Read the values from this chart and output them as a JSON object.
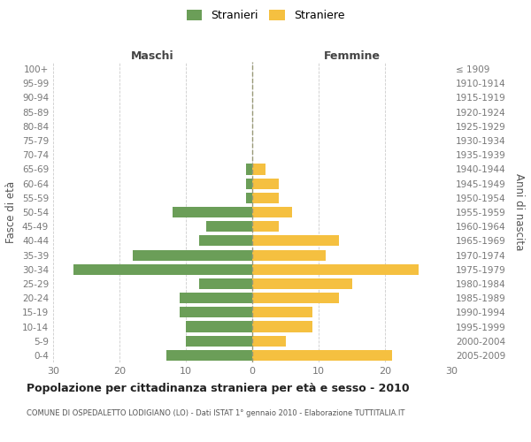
{
  "age_groups_top_to_bottom": [
    "100+",
    "95-99",
    "90-94",
    "85-89",
    "80-84",
    "75-79",
    "70-74",
    "65-69",
    "60-64",
    "55-59",
    "50-54",
    "45-49",
    "40-44",
    "35-39",
    "30-34",
    "25-29",
    "20-24",
    "15-19",
    "10-14",
    "5-9",
    "0-4"
  ],
  "birth_years_top_to_bottom": [
    "≤ 1909",
    "1910-1914",
    "1915-1919",
    "1920-1924",
    "1925-1929",
    "1930-1934",
    "1935-1939",
    "1940-1944",
    "1945-1949",
    "1950-1954",
    "1955-1959",
    "1960-1964",
    "1965-1969",
    "1970-1974",
    "1975-1979",
    "1980-1984",
    "1985-1989",
    "1990-1994",
    "1995-1999",
    "2000-2004",
    "2005-2009"
  ],
  "maschi_top_to_bottom": [
    0,
    0,
    0,
    0,
    0,
    0,
    0,
    1,
    1,
    1,
    12,
    7,
    8,
    18,
    27,
    8,
    11,
    11,
    10,
    10,
    13
  ],
  "femmine_top_to_bottom": [
    0,
    0,
    0,
    0,
    0,
    0,
    0,
    2,
    4,
    4,
    6,
    4,
    13,
    11,
    25,
    15,
    13,
    9,
    9,
    5,
    21
  ],
  "color_maschi": "#6b9e58",
  "color_femmine": "#f5c040",
  "legend_maschi": "Stranieri",
  "legend_femmine": "Straniere",
  "label_maschi": "Maschi",
  "label_femmine": "Femmine",
  "ylabel_left": "Fasce di età",
  "ylabel_right": "Anni di nascita",
  "xlim": 30,
  "title": "Popolazione per cittadinanza straniera per età e sesso - 2010",
  "subtitle": "COMUNE DI OSPEDALETTO LODIGIANO (LO) - Dati ISTAT 1° gennaio 2010 - Elaborazione TUTTITALIA.IT",
  "background_color": "#ffffff",
  "grid_color": "#cccccc",
  "dashed_line_color": "#999977",
  "tick_color": "#777777",
  "label_color": "#555555",
  "title_color": "#222222"
}
